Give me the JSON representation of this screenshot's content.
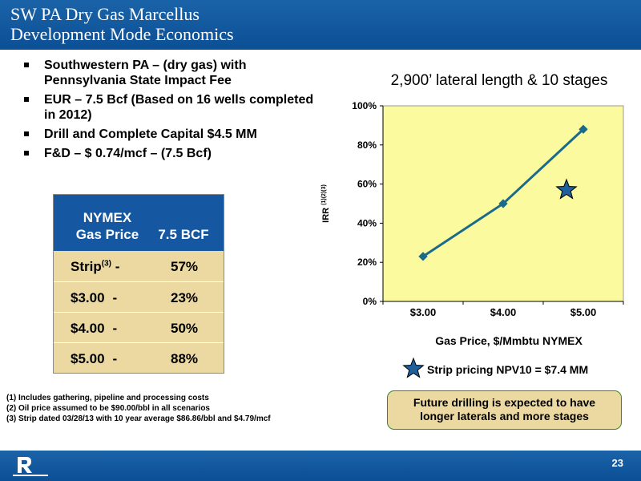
{
  "slide": {
    "title_line1": "SW PA Dry Gas Marcellus",
    "title_line2": "Development Mode Economics",
    "page_number": "23"
  },
  "bullets": [
    "Southwestern PA – (dry gas) with Pennsylvania State Impact Fee",
    "EUR – 7.5 Bcf (Based on 16 wells completed in 2012)",
    "Drill and Complete Capital $4.5 MM",
    "F&D – $ 0.74/mcf – (7.5 Bcf)"
  ],
  "nymex_table": {
    "header_line1": "NYMEX",
    "header_line2": "Gas Price",
    "header_col2": "7.5 BCF",
    "rows": [
      {
        "price": "Strip",
        "sup": "(3)",
        "dash": "-",
        "irr": "57%"
      },
      {
        "price": "$3.00",
        "dash": "-",
        "irr": "23%"
      },
      {
        "price": "$4.00",
        "dash": "-",
        "irr": "50%"
      },
      {
        "price": "$5.00",
        "dash": "-",
        "irr": "88%"
      }
    ]
  },
  "footnotes": [
    "(1)  Includes gathering, pipeline and processing costs",
    "(2)  Oil price assumed to be $90.00/bbl in all scenarios",
    "(3)  Strip dated 03/28/13 with 10 year average $86.86/bbl and $4.79/mcf"
  ],
  "chart_data": {
    "type": "line",
    "title": "2,900’ lateral length & 10 stages",
    "xlabel": "Gas Price, $/Mmbtu NYMEX",
    "ylabel": "IRR",
    "ylabel_sup": "(1)(2)(3)",
    "categories": [
      "$3.00",
      "$4.00",
      "$5.00"
    ],
    "series": [
      {
        "values": [
          23,
          50,
          88
        ],
        "color": "#1a6a8c"
      }
    ],
    "strip_point": {
      "x": 4.79,
      "y": 57
    },
    "ylim": [
      0,
      100
    ],
    "yticks": [
      0,
      20,
      40,
      60,
      80,
      100
    ],
    "ytick_labels": [
      "0%",
      "20%",
      "40%",
      "60%",
      "80%",
      "100%"
    ],
    "grid": false,
    "plot_background": "#fbfa9e",
    "legend_label": "Strip pricing NPV10 = $7.4 MM"
  },
  "callout": {
    "line1": "Future drilling is expected to have",
    "line2": "longer laterals and more stages"
  },
  "colors": {
    "header_blue": "#0b4f95",
    "table_tan": "#ecd9a2",
    "callout_border": "#2e8b2e",
    "star_fill": "#1f5f9c"
  }
}
